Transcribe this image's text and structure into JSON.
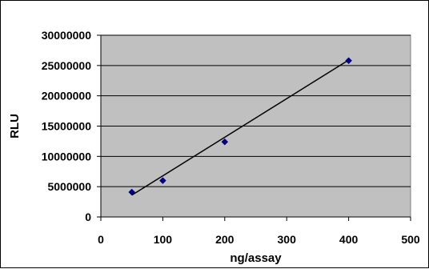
{
  "chart_data": {
    "type": "scatter",
    "xlabel": "ng/assay",
    "ylabel": "RLU",
    "xlim": [
      0,
      500
    ],
    "ylim": [
      0,
      30000000
    ],
    "x_ticks": [
      0,
      100,
      200,
      300,
      400,
      500
    ],
    "y_ticks": [
      0,
      5000000,
      10000000,
      15000000,
      20000000,
      25000000,
      30000000
    ],
    "x_tick_labels": [
      "0",
      "100",
      "200",
      "300",
      "400",
      "500"
    ],
    "y_tick_labels": [
      "0",
      "5000000",
      "10000000",
      "15000000",
      "20000000",
      "25000000",
      "30000000"
    ],
    "grid": "horizontal",
    "plot_background": "#c0c0c0",
    "series": [
      {
        "marker": "diamond",
        "color": "#000080",
        "points": [
          {
            "x": 50,
            "y": 4100000
          },
          {
            "x": 100,
            "y": 6000000
          },
          {
            "x": 200,
            "y": 12400000
          },
          {
            "x": 400,
            "y": 25800000
          }
        ]
      }
    ],
    "trendline": {
      "type": "linear",
      "color": "#000000",
      "start": {
        "x": 50,
        "y": 3600000
      },
      "end": {
        "x": 400,
        "y": 25900000
      }
    }
  }
}
